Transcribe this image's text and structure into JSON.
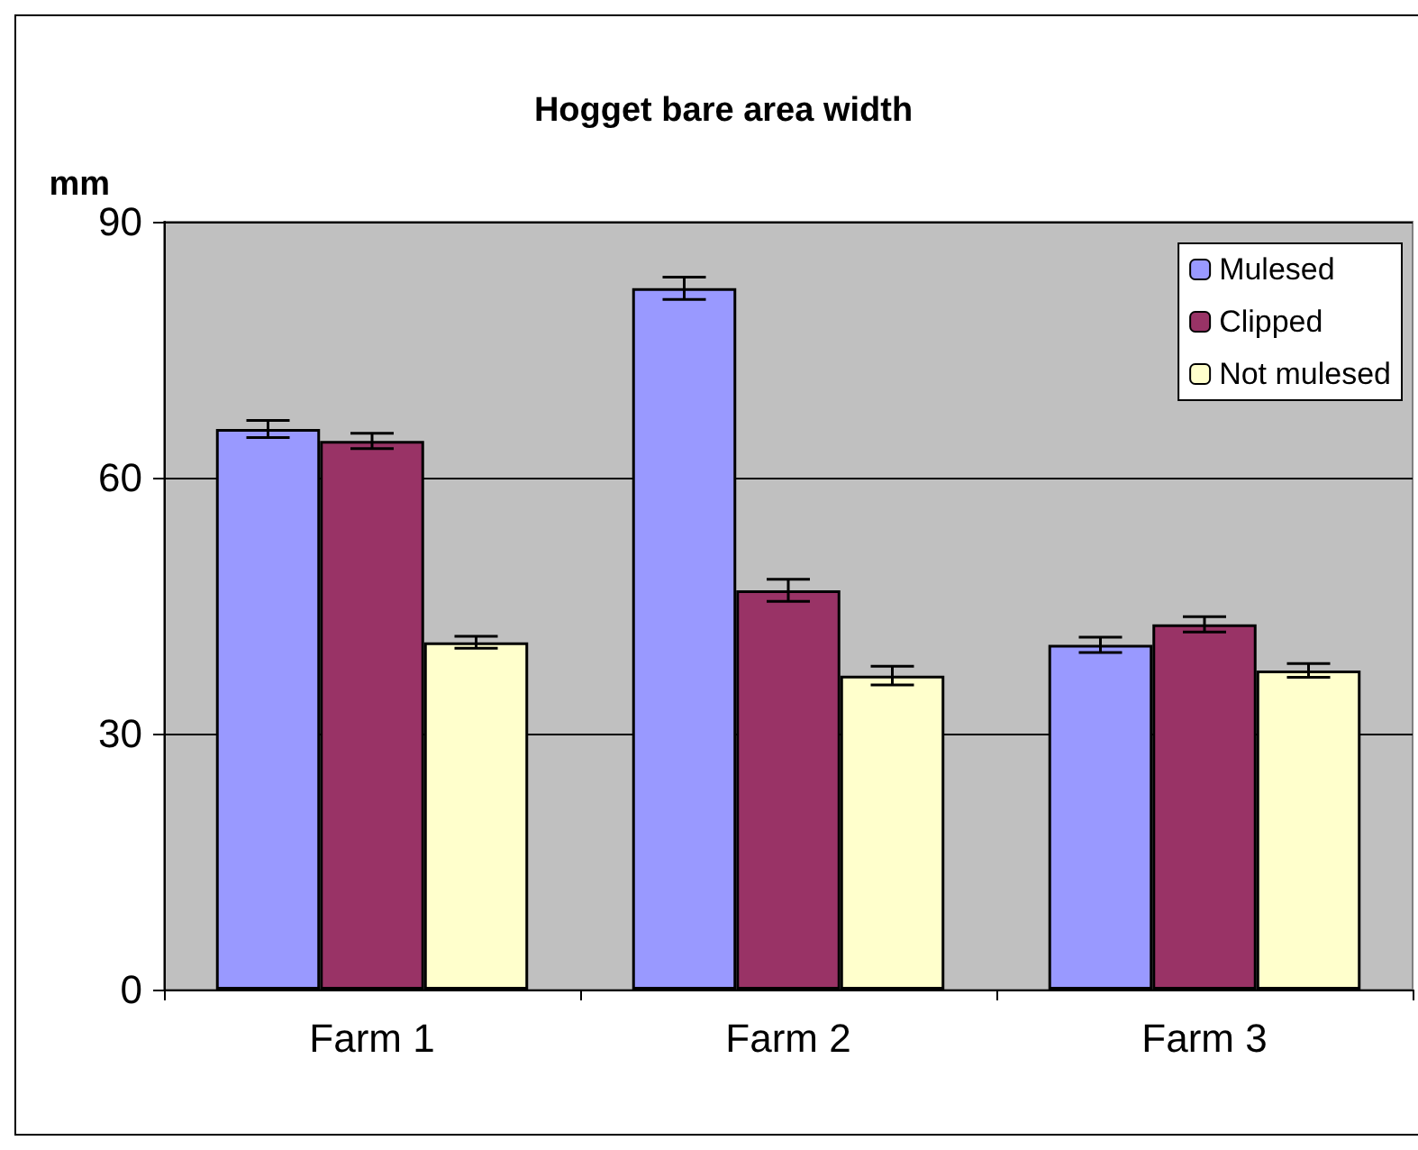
{
  "chart_data": {
    "type": "bar",
    "title": "Hogget bare area width",
    "ylabel": "mm",
    "categories": [
      "Farm 1",
      "Farm 2",
      "Farm 3"
    ],
    "series": [
      {
        "name": "Mulesed",
        "color": "#9999ff",
        "values": [
          65.7,
          82.2,
          40.4
        ],
        "errors": [
          1,
          1.3,
          0.9
        ]
      },
      {
        "name": "Clipped",
        "color": "#993366",
        "values": [
          64.3,
          46.8,
          42.8
        ],
        "errors": [
          0.9,
          1.3,
          0.9
        ]
      },
      {
        "name": "Not mulesed",
        "color": "#ffffcc",
        "values": [
          40.7,
          36.8,
          37.4
        ],
        "errors": [
          0.7,
          1.1,
          0.8
        ]
      }
    ],
    "ylim": [
      0,
      90
    ],
    "yticks": [
      0,
      30,
      60,
      90
    ],
    "grid": "y",
    "legend": "top right"
  }
}
